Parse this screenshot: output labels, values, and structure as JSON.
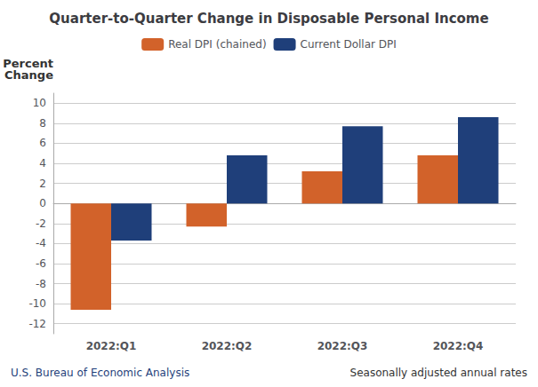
{
  "chart_data": {
    "type": "bar",
    "title": "Quarter-to-Quarter Change in Disposable Personal Income",
    "ylabel": "Percent\nChange",
    "categories": [
      "2022:Q1",
      "2022:Q2",
      "2022:Q3",
      "2022:Q4"
    ],
    "series": [
      {
        "name": "Real DPI (chained)",
        "color": "#D2622A",
        "values": [
          -10.6,
          -2.3,
          3.2,
          4.8
        ]
      },
      {
        "name": "Current Dollar DPI",
        "color": "#1F3F7A",
        "values": [
          -3.7,
          4.8,
          7.7,
          8.6
        ]
      }
    ],
    "ylim": [
      -13,
      11
    ],
    "yticks": [
      -12,
      -10,
      -8,
      -6,
      -4,
      -2,
      0,
      2,
      4,
      6,
      8,
      10
    ],
    "grid": true,
    "legend": "top",
    "annotations": [
      {
        "text": "U.S. Bureau of Economic Analysis",
        "color": "#1F3F7A"
      },
      {
        "text": "Seasonally adjusted annual rates",
        "color": "#333333"
      }
    ]
  }
}
